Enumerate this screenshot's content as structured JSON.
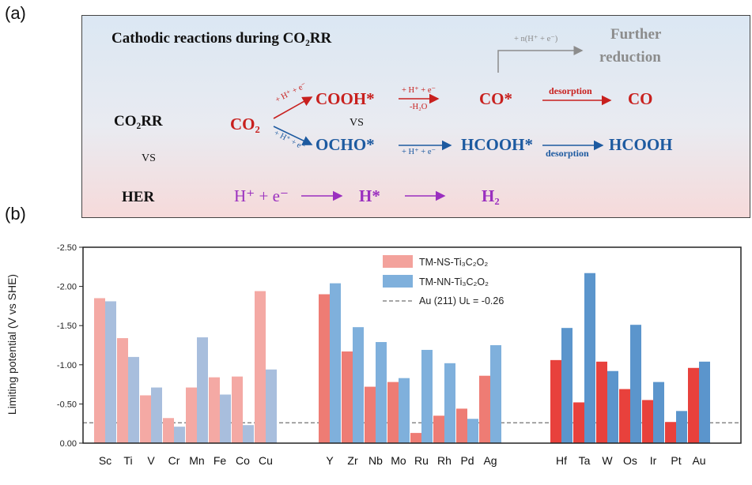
{
  "panel_labels": {
    "a": "(a)",
    "b": "(b)"
  },
  "scheme": {
    "title": "Cathodic reactions during CO₂RR",
    "further_arrow_label": "+ n(H⁺ + e⁻)",
    "further_line1": "Further",
    "further_line2": "reduction",
    "co2rr": "CO₂RR",
    "vs1": "VS",
    "vs2": "VS",
    "her": "HER",
    "co2": "CO₂",
    "step_red": "+ H⁺ + e⁻",
    "step_blue": "+ H⁺ + e⁻",
    "cooh": "COOH*",
    "cooh_arrow_top": "+ H⁺ + e⁻",
    "cooh_arrow_bottom": "-H₂O",
    "co_ads": "CO*",
    "desorption_red": "desorption",
    "co": "CO",
    "ocho": "OCHO*",
    "ocho_arrow_bottom": "+ H⁺ + e⁻",
    "hcooh_ads": "HCOOH*",
    "desorption_blue": "desorption",
    "hcooh": "HCOOH",
    "h_plus_e": "H⁺ + e⁻",
    "h_ads": "H*",
    "h2": "H₂"
  },
  "colors": {
    "ns_light": "#f4a9a4",
    "ns": "#ee7c74",
    "ns_dark": "#e8413c",
    "nn_light": "#a8bedd",
    "nn": "#7fb0dc",
    "nn_dark": "#5b95cc",
    "reference": "#888888"
  },
  "chart_data": {
    "type": "bar",
    "ylabel": "Limiting potential (V vs SHE)",
    "ylim": [
      0,
      -2.5
    ],
    "yticks": [
      "-2.50",
      "-2.00",
      "-1.50",
      "-1.00",
      "-0.50",
      "0.00"
    ],
    "legend_position": "top-center",
    "series_names": [
      "TM-NS-Ti₃C₂O₂",
      "TM-NN-Ti₃C₂O₂"
    ],
    "reference": {
      "label": "Au (211)  Uʟ = -0.26",
      "value": -0.26
    },
    "groups": [
      {
        "categories": [
          "Sc",
          "Ti",
          "V",
          "Cr",
          "Mn",
          "Fe",
          "Co",
          "Cu"
        ],
        "ns": [
          -1.85,
          -1.34,
          -0.61,
          -0.32,
          -0.71,
          -0.84,
          -0.85,
          -1.94
        ],
        "nn": [
          -1.81,
          -1.1,
          -0.71,
          -0.21,
          -1.35,
          -0.62,
          -0.23,
          -0.94
        ]
      },
      {
        "categories": [
          "Y",
          "Zr",
          "Nb",
          "Mo",
          "Ru",
          "Rh",
          "Pd",
          "Ag"
        ],
        "ns": [
          -1.9,
          -1.17,
          -0.72,
          -0.78,
          -0.13,
          -0.35,
          -0.44,
          -0.86
        ],
        "nn": [
          -2.04,
          -1.48,
          -1.29,
          -0.83,
          -1.19,
          -1.02,
          -0.31,
          -1.25
        ]
      },
      {
        "categories": [
          "Hf",
          "Ta",
          "W",
          "Os",
          "Ir",
          "Pt",
          "Au"
        ],
        "ns": [
          -1.06,
          -0.52,
          -1.04,
          -0.69,
          -0.55,
          -0.27,
          -0.96
        ],
        "nn": [
          -1.47,
          -2.17,
          -0.92,
          -1.51,
          -0.78,
          -0.41,
          -1.04
        ]
      }
    ]
  }
}
